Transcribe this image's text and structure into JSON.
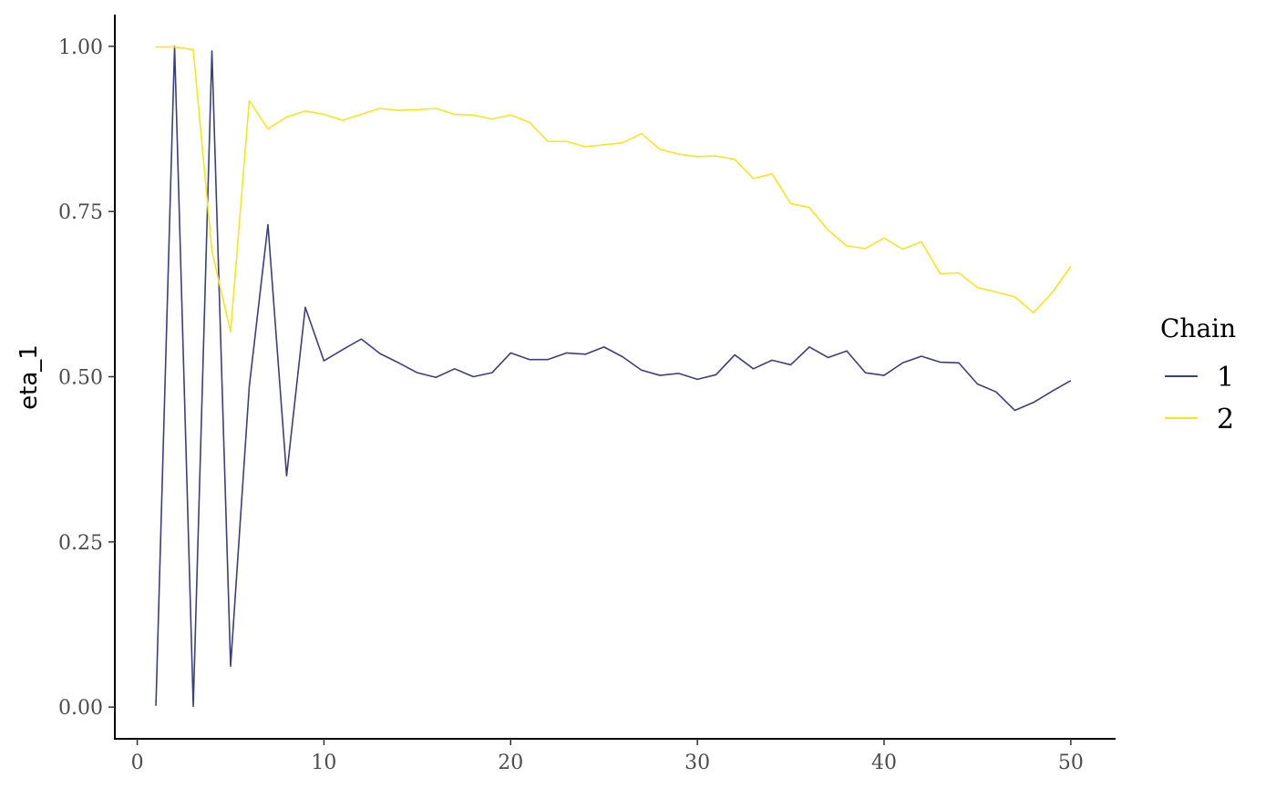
{
  "chart_data": {
    "type": "line",
    "title": "",
    "xlabel": "",
    "ylabel": "eta_1",
    "xlim": [
      -1.2,
      52.4
    ],
    "ylim": [
      -0.048,
      1.048
    ],
    "xticks": [
      0,
      10,
      20,
      30,
      40,
      50
    ],
    "xtick_labels": [
      "0",
      "10",
      "20",
      "30",
      "40",
      "50"
    ],
    "yticks": [
      0.0,
      0.25,
      0.5,
      0.75,
      1.0
    ],
    "ytick_labels": [
      "0.00",
      "0.25",
      "0.50",
      "0.75",
      "1.00"
    ],
    "grid": false,
    "legend": {
      "title": "Chain",
      "position": "right"
    },
    "x": [
      1,
      2,
      3,
      4,
      5,
      6,
      7,
      8,
      9,
      10,
      11,
      12,
      13,
      14,
      15,
      16,
      17,
      18,
      19,
      20,
      21,
      22,
      23,
      24,
      25,
      26,
      27,
      28,
      29,
      30,
      31,
      32,
      33,
      34,
      35,
      36,
      37,
      38,
      39,
      40,
      41,
      42,
      43,
      44,
      45,
      46,
      47,
      48,
      49,
      50
    ],
    "series": [
      {
        "name": "1",
        "color": "#3b3f7c",
        "values": [
          0.002,
          1.0,
          0.001,
          0.993,
          0.062,
          0.485,
          0.73,
          0.35,
          0.605,
          0.524,
          0.541,
          0.557,
          0.535,
          0.521,
          0.506,
          0.499,
          0.512,
          0.5,
          0.506,
          0.536,
          0.526,
          0.526,
          0.536,
          0.534,
          0.545,
          0.53,
          0.51,
          0.502,
          0.505,
          0.496,
          0.503,
          0.533,
          0.512,
          0.525,
          0.518,
          0.545,
          0.529,
          0.539,
          0.506,
          0.502,
          0.521,
          0.531,
          0.522,
          0.521,
          0.489,
          0.477,
          0.449,
          0.461,
          0.478,
          0.494
        ]
      },
      {
        "name": "2",
        "color": "#f5e61f",
        "values": [
          0.999,
          0.999,
          0.995,
          0.69,
          0.568,
          0.918,
          0.875,
          0.893,
          0.902,
          0.897,
          0.888,
          0.897,
          0.906,
          0.903,
          0.904,
          0.906,
          0.897,
          0.896,
          0.89,
          0.896,
          0.885,
          0.856,
          0.856,
          0.848,
          0.851,
          0.854,
          0.868,
          0.844,
          0.837,
          0.833,
          0.834,
          0.829,
          0.8,
          0.807,
          0.762,
          0.756,
          0.722,
          0.698,
          0.694,
          0.71,
          0.693,
          0.704,
          0.656,
          0.657,
          0.635,
          0.628,
          0.621,
          0.597,
          0.627,
          0.667
        ]
      }
    ]
  }
}
